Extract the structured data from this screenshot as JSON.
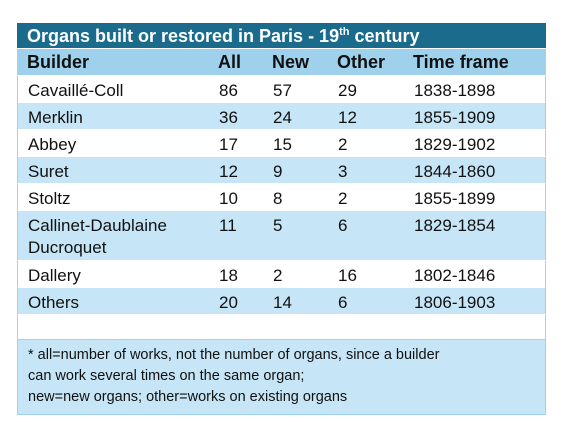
{
  "table": {
    "title": {
      "before": "Organs built or restored in Paris - 19",
      "superscript": "th",
      "after": " century"
    },
    "header": [
      "Builder",
      "All",
      "New",
      "Other",
      "Time frame"
    ],
    "rows": [
      [
        [
          "Cavaillé-Coll"
        ],
        86,
        57,
        29,
        "1838-1898"
      ],
      [
        [
          "Merklin"
        ],
        36,
        24,
        12,
        "1855-1909"
      ],
      [
        [
          "Abbey"
        ],
        17,
        15,
        2,
        "1829-1902"
      ],
      [
        [
          "Suret"
        ],
        12,
        9,
        3,
        "1844-1860"
      ],
      [
        [
          "Stoltz"
        ],
        10,
        8,
        2,
        "1855-1899"
      ],
      [
        [
          "Callinet-Daublaine",
          "Ducroquet"
        ],
        11,
        5,
        6,
        "1829-1854"
      ],
      [
        [
          "Dallery"
        ],
        18,
        2,
        16,
        "1802-1846"
      ],
      [
        [
          "Others"
        ],
        20,
        14,
        6,
        "1806-1903"
      ]
    ],
    "footnote": [
      "* all=number of works, not the number of organs, since a builder",
      "can work several times on the same organ;",
      "new=new organs; other=works on existing organs"
    ]
  }
}
